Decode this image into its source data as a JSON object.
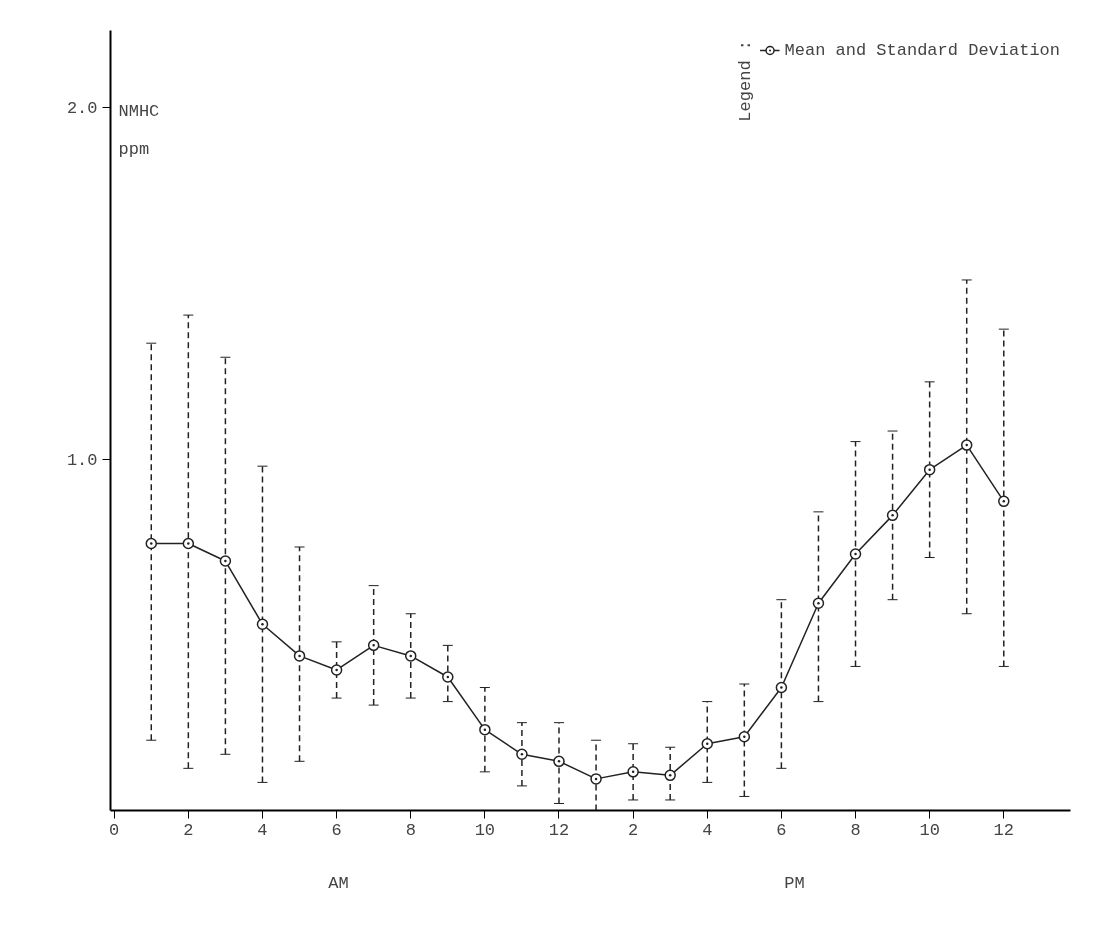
{
  "chart_data": {
    "type": "line",
    "ylabel": "NMHC\nppm",
    "annotations": [
      "AM",
      "PM"
    ],
    "categories": [
      "0",
      null,
      "2",
      null,
      "4",
      null,
      "6",
      null,
      "8",
      null,
      "10",
      null,
      "12",
      null,
      "2",
      null,
      "4",
      null,
      "6",
      null,
      "8",
      null,
      "10",
      null,
      "12"
    ],
    "series": [
      {
        "name": "Mean and Standard Deviation",
        "color": "#222222",
        "values": [
          null,
          0.76,
          0.76,
          0.71,
          0.53,
          0.44,
          0.4,
          0.47,
          0.44,
          0.38,
          0.23,
          0.16,
          0.14,
          0.09,
          0.11,
          0.1,
          0.19,
          0.21,
          0.35,
          0.59,
          0.73,
          0.84,
          0.97,
          1.04,
          0.88
        ],
        "errors": [
          null,
          [
            0.2,
            1.33
          ],
          [
            0.12,
            1.41
          ],
          [
            0.16,
            1.29
          ],
          [
            0.08,
            0.98
          ],
          [
            0.14,
            0.75
          ],
          [
            0.32,
            0.48
          ],
          [
            0.3,
            0.64
          ],
          [
            0.32,
            0.56
          ],
          [
            0.31,
            0.47
          ],
          [
            0.11,
            0.35
          ],
          [
            0.07,
            0.25
          ],
          [
            0.02,
            0.25
          ],
          [
            0.0,
            0.2
          ],
          [
            0.03,
            0.19
          ],
          [
            0.03,
            0.18
          ],
          [
            0.08,
            0.31
          ],
          [
            0.04,
            0.36
          ],
          [
            0.12,
            0.6
          ],
          [
            0.31,
            0.85
          ],
          [
            0.41,
            1.05
          ],
          [
            0.6,
            1.08
          ],
          [
            0.72,
            1.22
          ],
          [
            0.56,
            1.51
          ],
          [
            0.41,
            1.37
          ]
        ]
      }
    ],
    "legend_title": "Legend :",
    "legend": "top right",
    "marker": "circle",
    "line_style": "solid",
    "grid": false,
    "ylim": [
      0,
      2.22
    ],
    "yticks": [
      {
        "value": 1,
        "label": "1.0"
      },
      {
        "value": 2,
        "label": "2.0"
      }
    ]
  }
}
